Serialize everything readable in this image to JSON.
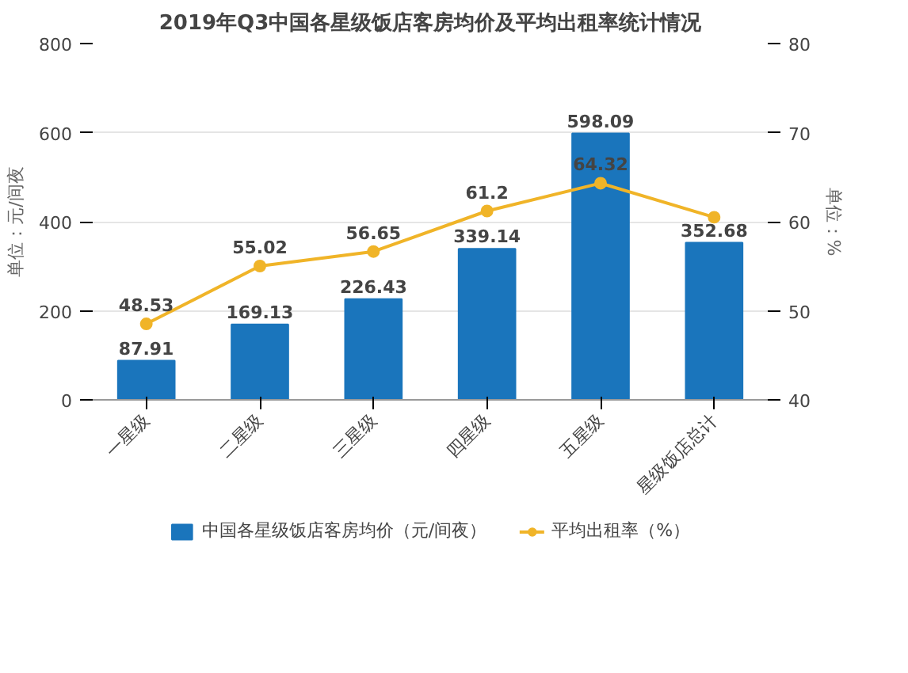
{
  "chart_data": {
    "type": "bar",
    "title": "2019年Q3中国各星级饭店客房均价及平均出租率统计情况",
    "ylabel": "单位：元/间夜",
    "y2label": "单位：%",
    "categories": [
      "一星级",
      "二星级",
      "三星级",
      "四星级",
      "五星级",
      "星级饭店总计"
    ],
    "series": [
      {
        "name": "中国各星级饭店客房均价（元/间夜）",
        "color": "#1a75bc",
        "values": [
          87.91,
          169.13,
          226.43,
          339.14,
          598.09,
          352.68
        ],
        "value_labels": [
          "87.91",
          "169.13",
          "226.43",
          "339.14",
          "598.09",
          "352.68"
        ]
      },
      {
        "name": "平均出租率（%）",
        "type": "line",
        "axis": "y2",
        "color": "#f0b428",
        "marker": "circle",
        "values": [
          48.53,
          55.02,
          56.65,
          61.2,
          64.32,
          60.5
        ],
        "value_labels": [
          "48.53",
          "55.02",
          "56.65",
          "61.2",
          "64.32",
          null
        ]
      }
    ],
    "ylim": [
      0,
      800
    ],
    "yticks": [
      0,
      200,
      400,
      600,
      800
    ],
    "y2lim": [
      40,
      80
    ],
    "y2ticks": [
      40,
      50,
      60,
      70,
      80
    ],
    "grid": "y",
    "legend": "bottom"
  }
}
